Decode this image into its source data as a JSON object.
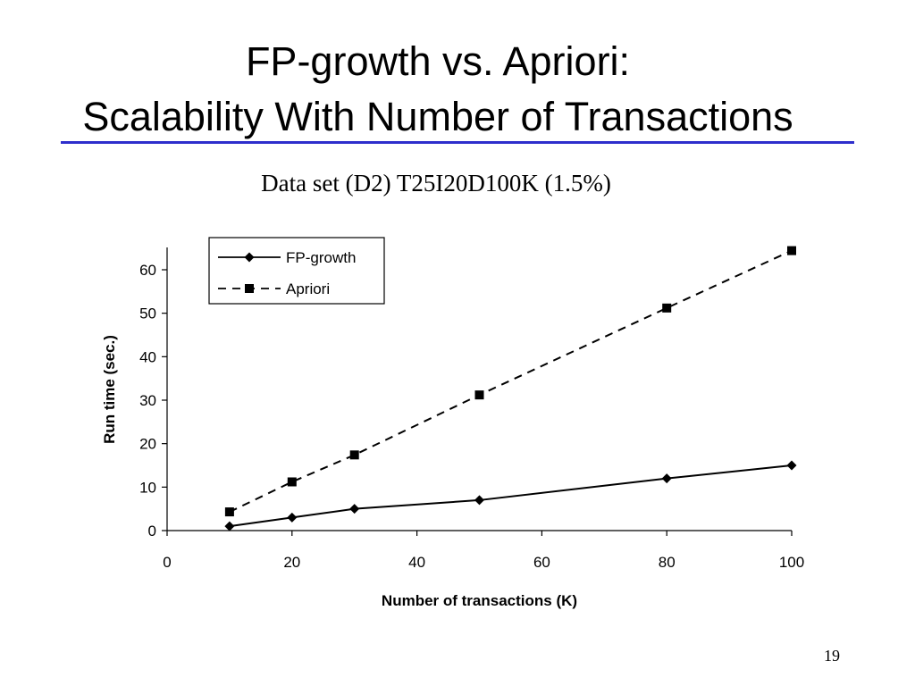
{
  "slide": {
    "title_line1": "FP-growth vs. Apriori:",
    "title_line2": "Scalability With Number of Transactions",
    "subtitle": "Data set (D2) T25I20D100K (1.5%)",
    "page_number": "19",
    "accent_color": "#2e2ecc"
  },
  "chart_data": {
    "type": "line",
    "title": "",
    "xlabel": "Number of transactions (K)",
    "ylabel": "Run time (sec.)",
    "xlim": [
      0,
      100
    ],
    "ylim": [
      0,
      65
    ],
    "xticks": [
      0,
      20,
      40,
      60,
      80,
      100
    ],
    "yticks": [
      0,
      10,
      20,
      30,
      40,
      50,
      60
    ],
    "grid": false,
    "legend_position": "top-left",
    "series": [
      {
        "name": "FP-growth",
        "marker": "diamond",
        "line_style": "solid",
        "color": "#000000",
        "x": [
          10,
          20,
          30,
          50,
          80,
          100
        ],
        "y": [
          1,
          3,
          5,
          7,
          12,
          15
        ]
      },
      {
        "name": "Apriori",
        "marker": "square",
        "line_style": "dashed",
        "color": "#000000",
        "x": [
          10,
          20,
          30,
          50,
          80,
          100
        ],
        "y": [
          4.3,
          11.2,
          17.4,
          31.2,
          51.2,
          64.4
        ]
      }
    ]
  }
}
